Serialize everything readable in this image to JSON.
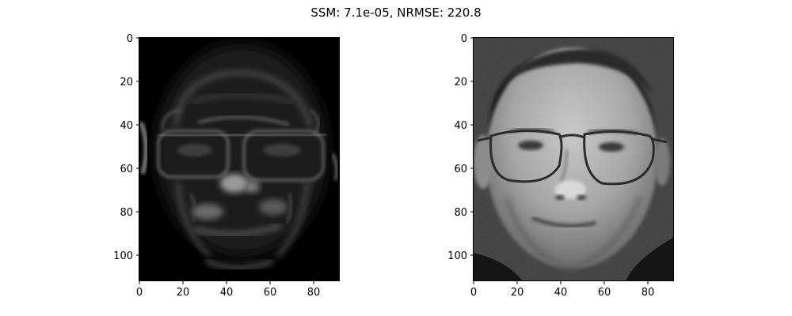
{
  "title": "SSM: 7.1e-05, NRMSE: 220.8",
  "chart_data": [
    {
      "type": "image",
      "panel": "left",
      "image_width": 92,
      "image_height": 112,
      "xlim": [
        0,
        92
      ],
      "ylim": [
        112,
        0
      ],
      "x_ticks": [
        0,
        20,
        40,
        60,
        80
      ],
      "y_ticks": [
        0,
        20,
        40,
        60,
        80,
        100
      ],
      "x_tick_labels": [
        "0",
        "20",
        "40",
        "60",
        "80"
      ],
      "y_tick_labels": [
        "0",
        "20",
        "40",
        "60",
        "80",
        "100"
      ],
      "colormap": "gray",
      "content": "residual-face-image",
      "background_color": "#000000"
    },
    {
      "type": "image",
      "panel": "right",
      "image_width": 92,
      "image_height": 112,
      "xlim": [
        0,
        92
      ],
      "ylim": [
        112,
        0
      ],
      "x_ticks": [
        0,
        20,
        40,
        60,
        80
      ],
      "y_ticks": [
        0,
        20,
        40,
        60,
        80,
        100
      ],
      "x_tick_labels": [
        "0",
        "20",
        "40",
        "60",
        "80"
      ],
      "y_tick_labels": [
        "0",
        "20",
        "40",
        "60",
        "80",
        "100"
      ],
      "colormap": "gray",
      "content": "face-photo-with-glasses",
      "background_color": "#3a3a3a"
    }
  ]
}
